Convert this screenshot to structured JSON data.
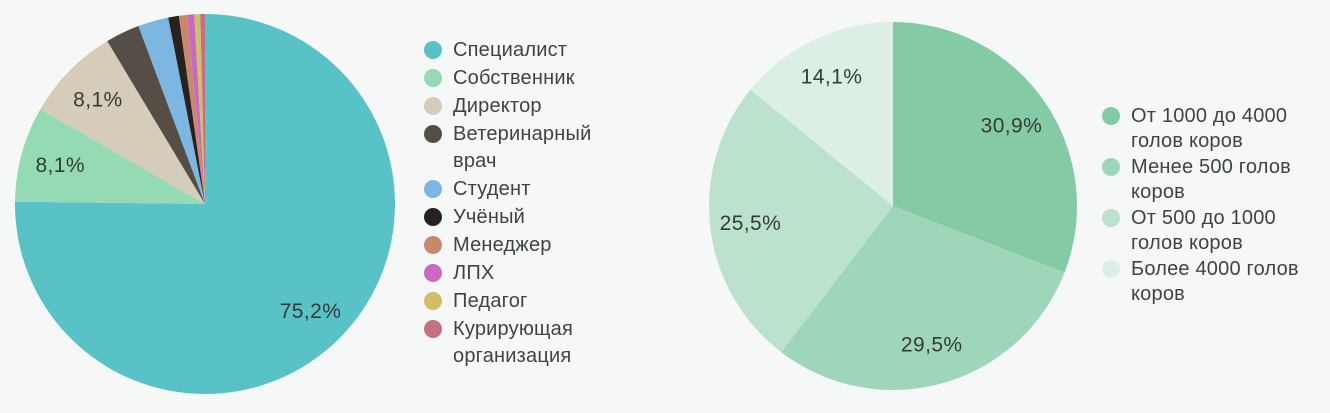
{
  "page": {
    "background_color": "#f5f8f7",
    "text_color": "#3f4442",
    "label_text_color": "#343b39"
  },
  "chart_data": [
    {
      "type": "pie",
      "title": "",
      "legend_position": "right",
      "direction": "clockwise",
      "start_angle_deg": 0,
      "label_radius": 0.79,
      "slices": [
        {
          "label": "Специалист",
          "value": 75.2,
          "display": "75,2%",
          "show_label": true,
          "color": "#58c2c7"
        },
        {
          "label": "Собственник",
          "value": 8.1,
          "display": "8,1%",
          "show_label": true,
          "color": "#94dab4"
        },
        {
          "label": "Директор",
          "value": 8.1,
          "display": "8,1%",
          "show_label": true,
          "color": "#d6ccba"
        },
        {
          "label": "Ветеринарный врач",
          "value": 2.9,
          "display": "",
          "show_label": false,
          "color": "#554e47"
        },
        {
          "label": "Студент",
          "value": 2.6,
          "display": "",
          "show_label": false,
          "color": "#7db6e0"
        },
        {
          "label": "Учёный",
          "value": 0.9,
          "display": "",
          "show_label": false,
          "color": "#272220"
        },
        {
          "label": "Менеджер",
          "value": 0.7,
          "display": "",
          "show_label": false,
          "color": "#c8886e"
        },
        {
          "label": "ЛПХ",
          "value": 0.6,
          "display": "",
          "show_label": false,
          "color": "#c76bc2"
        },
        {
          "label": "Педагог",
          "value": 0.5,
          "display": "",
          "show_label": false,
          "color": "#d2be69"
        },
        {
          "label": "Курирующая организация",
          "value": 0.4,
          "display": "",
          "show_label": false,
          "color": "#c46f83"
        }
      ]
    },
    {
      "type": "pie",
      "title": "",
      "legend_position": "right",
      "direction": "clockwise",
      "start_angle_deg": 0,
      "label_radius": 0.78,
      "slices": [
        {
          "label": "От 1000 до 4000 голов коров",
          "value": 30.9,
          "display": "30,9%",
          "show_label": true,
          "color": "#84caa5"
        },
        {
          "label": "Менее 500 голов коров",
          "value": 29.5,
          "display": "29,5%",
          "show_label": true,
          "color": "#9fd6b9"
        },
        {
          "label": "От 500 до 1000 голов коров",
          "value": 25.5,
          "display": "25,5%",
          "show_label": true,
          "color": "#bce1cc"
        },
        {
          "label": "Более 4000 голов коров",
          "value": 14.1,
          "display": "14,1%",
          "show_label": true,
          "color": "#dcefe4"
        }
      ]
    }
  ]
}
